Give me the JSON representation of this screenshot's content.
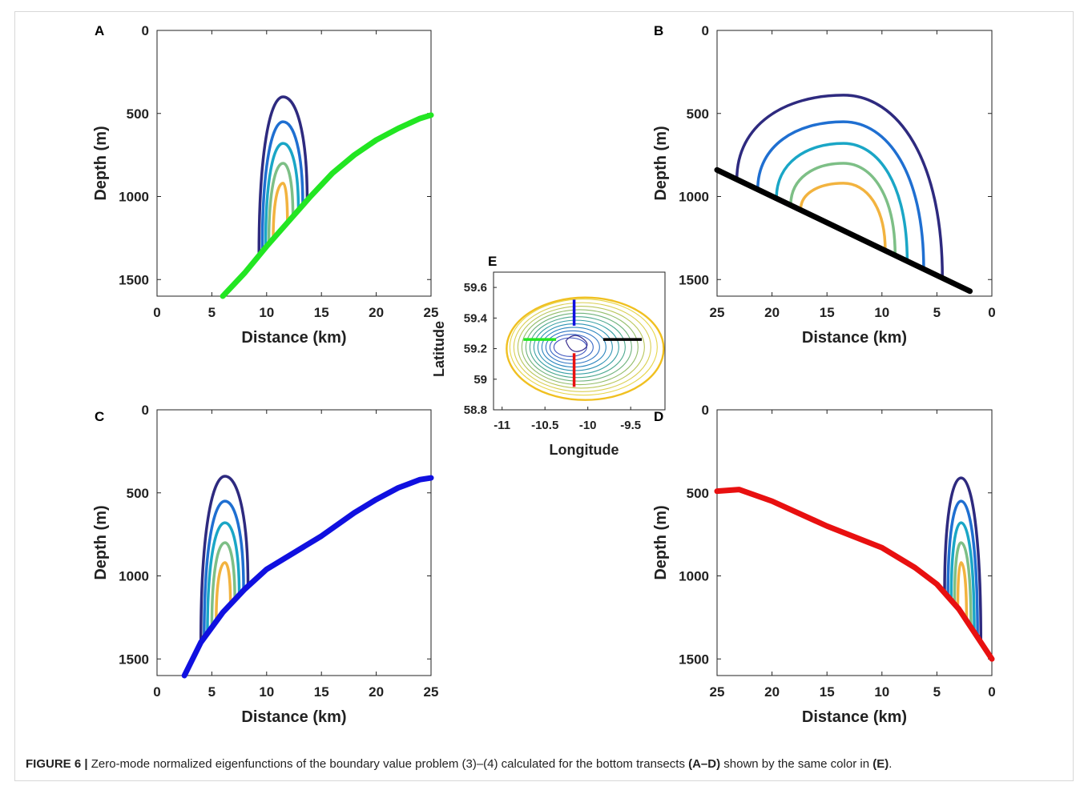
{
  "caption": {
    "label": "FIGURE 6 |",
    "text_1": " Zero-mode normalized eigenfunctions of the boundary value problem (3)–(4) calculated for the bottom transects ",
    "ref_1": "(A–D)",
    "text_2": " shown by the same color in ",
    "ref_2": "(E)",
    "text_3": "."
  },
  "colors": {
    "contours": [
      "#2e2a7f",
      "#1f6fd1",
      "#1aa6c6",
      "#7dbf86",
      "#f2b33f"
    ],
    "A": "#22e622",
    "B": "#000000",
    "C": "#1010e0",
    "D": "#e81010"
  },
  "chart_data": [
    {
      "panel": "A",
      "type": "line",
      "xlabel": "Distance (km)",
      "ylabel": "Depth (m)",
      "xlim": [
        0,
        25
      ],
      "ylim": [
        1600,
        0
      ],
      "x_reversed": false,
      "xticks": [
        0,
        5,
        10,
        15,
        20,
        25
      ],
      "yticks": [
        0,
        500,
        1000,
        1500
      ],
      "bottom_profile": [
        [
          6,
          1600
        ],
        [
          8,
          1460
        ],
        [
          10,
          1300
        ],
        [
          12,
          1150
        ],
        [
          14,
          1000
        ],
        [
          16,
          860
        ],
        [
          18,
          750
        ],
        [
          20,
          660
        ],
        [
          22,
          590
        ],
        [
          24,
          530
        ],
        [
          25,
          510
        ]
      ],
      "eigenfunction_contours": {
        "x_center": 11.5,
        "tops": [
          400,
          550,
          680,
          800,
          920
        ],
        "x_left": [
          9.3,
          9.6,
          9.9,
          10.2,
          10.6
        ],
        "x_right": [
          13.7,
          13.3,
          12.9,
          12.4,
          11.9
        ]
      }
    },
    {
      "panel": "B",
      "type": "line",
      "xlabel": "Distance (km)",
      "ylabel": "Depth (m)",
      "xlim": [
        25,
        0
      ],
      "ylim": [
        1600,
        0
      ],
      "x_reversed": true,
      "xticks": [
        25,
        20,
        15,
        10,
        5,
        0
      ],
      "yticks": [
        0,
        500,
        1000,
        1500
      ],
      "bottom_profile": [
        [
          25,
          840
        ],
        [
          2,
          1570
        ]
      ],
      "eigenfunction_contours": {
        "x_center": 13.5,
        "tops": [
          390,
          550,
          680,
          800,
          920
        ],
        "x_left": [
          23.2,
          21.3,
          19.6,
          18.3,
          17.4
        ],
        "x_right": [
          4.5,
          6.2,
          7.7,
          8.8,
          9.7
        ]
      }
    },
    {
      "panel": "C",
      "type": "line",
      "xlabel": "Distance (km)",
      "ylabel": "Depth (m)",
      "xlim": [
        0,
        25
      ],
      "ylim": [
        1600,
        0
      ],
      "x_reversed": false,
      "xticks": [
        0,
        5,
        10,
        15,
        20,
        25
      ],
      "yticks": [
        0,
        500,
        1000,
        1500
      ],
      "bottom_profile": [
        [
          2.5,
          1600
        ],
        [
          4,
          1400
        ],
        [
          6,
          1220
        ],
        [
          8,
          1080
        ],
        [
          10,
          960
        ],
        [
          12,
          880
        ],
        [
          15,
          760
        ],
        [
          18,
          620
        ],
        [
          20,
          540
        ],
        [
          22,
          470
        ],
        [
          24,
          420
        ],
        [
          25,
          410
        ]
      ],
      "eigenfunction_contours": {
        "x_center": 6.2,
        "tops": [
          400,
          550,
          680,
          800,
          920
        ],
        "x_left": [
          4.0,
          4.3,
          4.6,
          5.0,
          5.4
        ],
        "x_right": [
          8.3,
          7.9,
          7.5,
          7.1,
          6.7
        ]
      }
    },
    {
      "panel": "D",
      "type": "line",
      "xlabel": "Distance (km)",
      "ylabel": "Depth (m)",
      "xlim": [
        25,
        0
      ],
      "ylim": [
        1600,
        0
      ],
      "x_reversed": true,
      "xticks": [
        25,
        20,
        15,
        10,
        5,
        0
      ],
      "yticks": [
        0,
        500,
        1000,
        1500
      ],
      "bottom_profile": [
        [
          25,
          490
        ],
        [
          23,
          480
        ],
        [
          20,
          550
        ],
        [
          15,
          700
        ],
        [
          10,
          830
        ],
        [
          7,
          950
        ],
        [
          5,
          1050
        ],
        [
          3,
          1200
        ],
        [
          1.5,
          1350
        ],
        [
          0,
          1500
        ]
      ],
      "eigenfunction_contours": {
        "x_center": 2.8,
        "tops": [
          410,
          550,
          680,
          800,
          920
        ],
        "x_left": [
          4.3,
          4.0,
          3.7,
          3.4,
          3.1
        ],
        "x_right": [
          1.0,
          1.3,
          1.6,
          1.9,
          2.3
        ]
      }
    },
    {
      "panel": "E",
      "type": "map",
      "xlabel": "Longitude",
      "ylabel": "Latitude",
      "xlim": [
        -11.1,
        -9.1
      ],
      "ylim": [
        58.8,
        59.7
      ],
      "xticks": [
        -11,
        -10.5,
        -10,
        -9.5
      ],
      "xtick_labels": [
        "-11",
        "-10.5",
        "-10",
        "-9.5"
      ],
      "yticks": [
        58.8,
        59,
        59.2,
        59.4,
        59.6
      ],
      "ytick_labels": [
        "58.8",
        "59",
        "59.2",
        "59.4",
        "59.6"
      ],
      "transects": [
        {
          "panel": "A",
          "lon": [
            -10.75,
            -10.37
          ],
          "lat": [
            59.26,
            59.26
          ]
        },
        {
          "panel": "B",
          "lon": [
            -9.82,
            -9.37
          ],
          "lat": [
            59.26,
            59.26
          ]
        },
        {
          "panel": "C",
          "lon": [
            -10.16,
            -10.16
          ],
          "lat": [
            59.52,
            59.35
          ]
        },
        {
          "panel": "D",
          "lon": [
            -10.16,
            -10.16
          ],
          "lat": [
            59.17,
            58.95
          ]
        }
      ]
    }
  ]
}
